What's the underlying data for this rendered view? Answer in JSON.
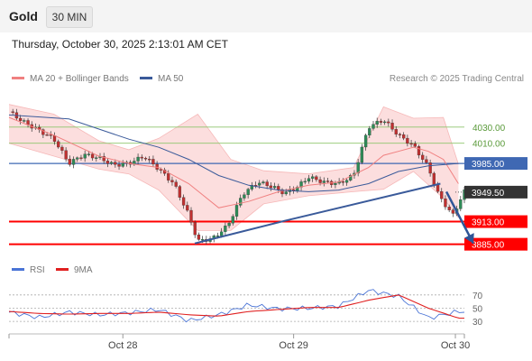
{
  "header": {
    "asset": "Gold",
    "timeframe": "30 MIN",
    "datetime": "Thursday, October 30, 2025 2:13:01 AM CET"
  },
  "legend": {
    "ma20": "MA 20 + Bollinger Bands",
    "ma50": "MA 50",
    "rsi": "RSI",
    "rsi_ma": "9MA",
    "copyright": "Research © 2025 Trading Central"
  },
  "colors": {
    "ma20": "#f08080",
    "ma50": "#3a5a9a",
    "bollinger_fill": "#fbd8d8",
    "green_levels": "#8dc56c",
    "blue_level": "#3f68b3",
    "red_levels": "#ff0000",
    "trendline": "#3a5a9a",
    "arrow": "#2f5597",
    "current_price_box": "#333333",
    "rsi_line": "#4a74d6",
    "rsi_ma": "#e02020"
  },
  "chart_data": [
    {
      "type": "candlestick",
      "x_ticks": [
        "Oct 28",
        "Oct 29",
        "Oct 30"
      ],
      "y_range": [
        3879,
        4051
      ],
      "current_price": "3949.50",
      "levels": [
        {
          "label": "4030.00",
          "value": 4030.0,
          "style": "green"
        },
        {
          "label": "4010.00",
          "value": 4010.0,
          "style": "green"
        },
        {
          "label": "3985.00",
          "value": 3985.0,
          "style": "blue"
        },
        {
          "label": "3913.00",
          "value": 3913.0,
          "style": "red"
        },
        {
          "label": "3885.00",
          "value": 3885.0,
          "style": "red"
        }
      ],
      "trendline": [
        [
          6.2,
          3886
        ],
        [
          9.2,
          3914
        ],
        [
          14.4,
          3960
        ]
      ],
      "projection_arrow": [
        [
          14.6,
          3950
        ],
        [
          15.5,
          3886
        ]
      ],
      "close_path": [
        [
          0,
          4049
        ],
        [
          0.5,
          4036
        ],
        [
          1.0,
          4026
        ],
        [
          1.5,
          4015
        ],
        [
          2.0,
          3985
        ],
        [
          2.5,
          3996
        ],
        [
          3.0,
          3992
        ],
        [
          3.5,
          3983
        ],
        [
          4.0,
          3985
        ],
        [
          4.5,
          3994
        ],
        [
          5.0,
          3978
        ],
        [
          5.5,
          3960
        ],
        [
          6.0,
          3921
        ],
        [
          6.3,
          3889
        ],
        [
          6.8,
          3892
        ],
        [
          7.3,
          3908
        ],
        [
          7.8,
          3947
        ],
        [
          8.3,
          3962
        ],
        [
          8.8,
          3956
        ],
        [
          9.2,
          3948
        ],
        [
          9.6,
          3955
        ],
        [
          10.0,
          3968
        ],
        [
          10.5,
          3962
        ],
        [
          11.0,
          3960
        ],
        [
          11.5,
          3970
        ],
        [
          12.0,
          4030
        ],
        [
          12.5,
          4039
        ],
        [
          13.0,
          4020
        ],
        [
          13.5,
          4007
        ],
        [
          14.0,
          3980
        ],
        [
          14.3,
          3949
        ],
        [
          14.8,
          3920
        ],
        [
          15.2,
          3950
        ]
      ],
      "bb_upper": [
        [
          0,
          4058
        ],
        [
          1.5,
          4046
        ],
        [
          3.0,
          4013
        ],
        [
          4.0,
          4002
        ],
        [
          5.0,
          4016
        ],
        [
          6.3,
          4046
        ],
        [
          7.4,
          3990
        ],
        [
          8.5,
          3976
        ],
        [
          10,
          3972
        ],
        [
          11.5,
          3980
        ],
        [
          12.5,
          4055
        ],
        [
          13.5,
          4041
        ],
        [
          14.5,
          4042
        ],
        [
          15.0,
          3984
        ]
      ],
      "bb_lower": [
        [
          0,
          4010
        ],
        [
          1.5,
          3994
        ],
        [
          3.0,
          3978
        ],
        [
          4.0,
          3972
        ],
        [
          5.0,
          3952
        ],
        [
          6.3,
          3902
        ],
        [
          7.4,
          3902
        ],
        [
          8.5,
          3935
        ],
        [
          10,
          3945
        ],
        [
          11.5,
          3950
        ],
        [
          12.5,
          3953
        ],
        [
          13.5,
          3975
        ],
        [
          14.5,
          3942
        ],
        [
          15.0,
          3918
        ]
      ],
      "ma20": [
        [
          0,
          4042
        ],
        [
          1.5,
          4020
        ],
        [
          3.0,
          3994
        ],
        [
          4.0,
          3985
        ],
        [
          5.0,
          3980
        ],
        [
          6.0,
          3960
        ],
        [
          7.0,
          3930
        ],
        [
          8.0,
          3938
        ],
        [
          9.0,
          3950
        ],
        [
          10.0,
          3958
        ],
        [
          11.0,
          3962
        ],
        [
          12.0,
          3980
        ],
        [
          12.5,
          3995
        ],
        [
          13.0,
          4000
        ],
        [
          13.5,
          4005
        ],
        [
          14.0,
          4000
        ],
        [
          14.5,
          3990
        ],
        [
          15.0,
          3960
        ]
      ],
      "ma50": [
        [
          0,
          4045
        ],
        [
          2.0,
          4040
        ],
        [
          4.0,
          4015
        ],
        [
          5.0,
          4005
        ],
        [
          6.0,
          3990
        ],
        [
          7.0,
          3970
        ],
        [
          8.0,
          3958
        ],
        [
          9.0,
          3952
        ],
        [
          10.0,
          3950
        ],
        [
          11.0,
          3952
        ],
        [
          12.0,
          3960
        ],
        [
          13.0,
          3975
        ],
        [
          14.0,
          3982
        ],
        [
          15.0,
          3985
        ]
      ]
    },
    {
      "type": "line",
      "title": "RSI",
      "y_ticks": [
        "70",
        "50",
        "30"
      ],
      "y_range": [
        22,
        82
      ],
      "x_ticks": [
        "Oct 28",
        "Oct 29",
        "Oct 30"
      ],
      "series": [
        {
          "name": "RSI",
          "values": [
            [
              0,
              44
            ],
            [
              1,
              36
            ],
            [
              2,
              44
            ],
            [
              3,
              40
            ],
            [
              4,
              43
            ],
            [
              5,
              48
            ],
            [
              6,
              31
            ],
            [
              7,
              40
            ],
            [
              8,
              55
            ],
            [
              9,
              49
            ],
            [
              10,
              50
            ],
            [
              11,
              53
            ],
            [
              12,
              77
            ],
            [
              13,
              68
            ],
            [
              14,
              35
            ],
            [
              15,
              45
            ]
          ]
        },
        {
          "name": "9MA",
          "values": [
            [
              0,
              45
            ],
            [
              1,
              42
            ],
            [
              2,
              41
            ],
            [
              3,
              42
            ],
            [
              4,
              42
            ],
            [
              5,
              44
            ],
            [
              6,
              40
            ],
            [
              7,
              38
            ],
            [
              8,
              45
            ],
            [
              9,
              48
            ],
            [
              10,
              51
            ],
            [
              11,
              51
            ],
            [
              12,
              62
            ],
            [
              13,
              70
            ],
            [
              14,
              50
            ],
            [
              15,
              35
            ]
          ]
        }
      ]
    }
  ]
}
